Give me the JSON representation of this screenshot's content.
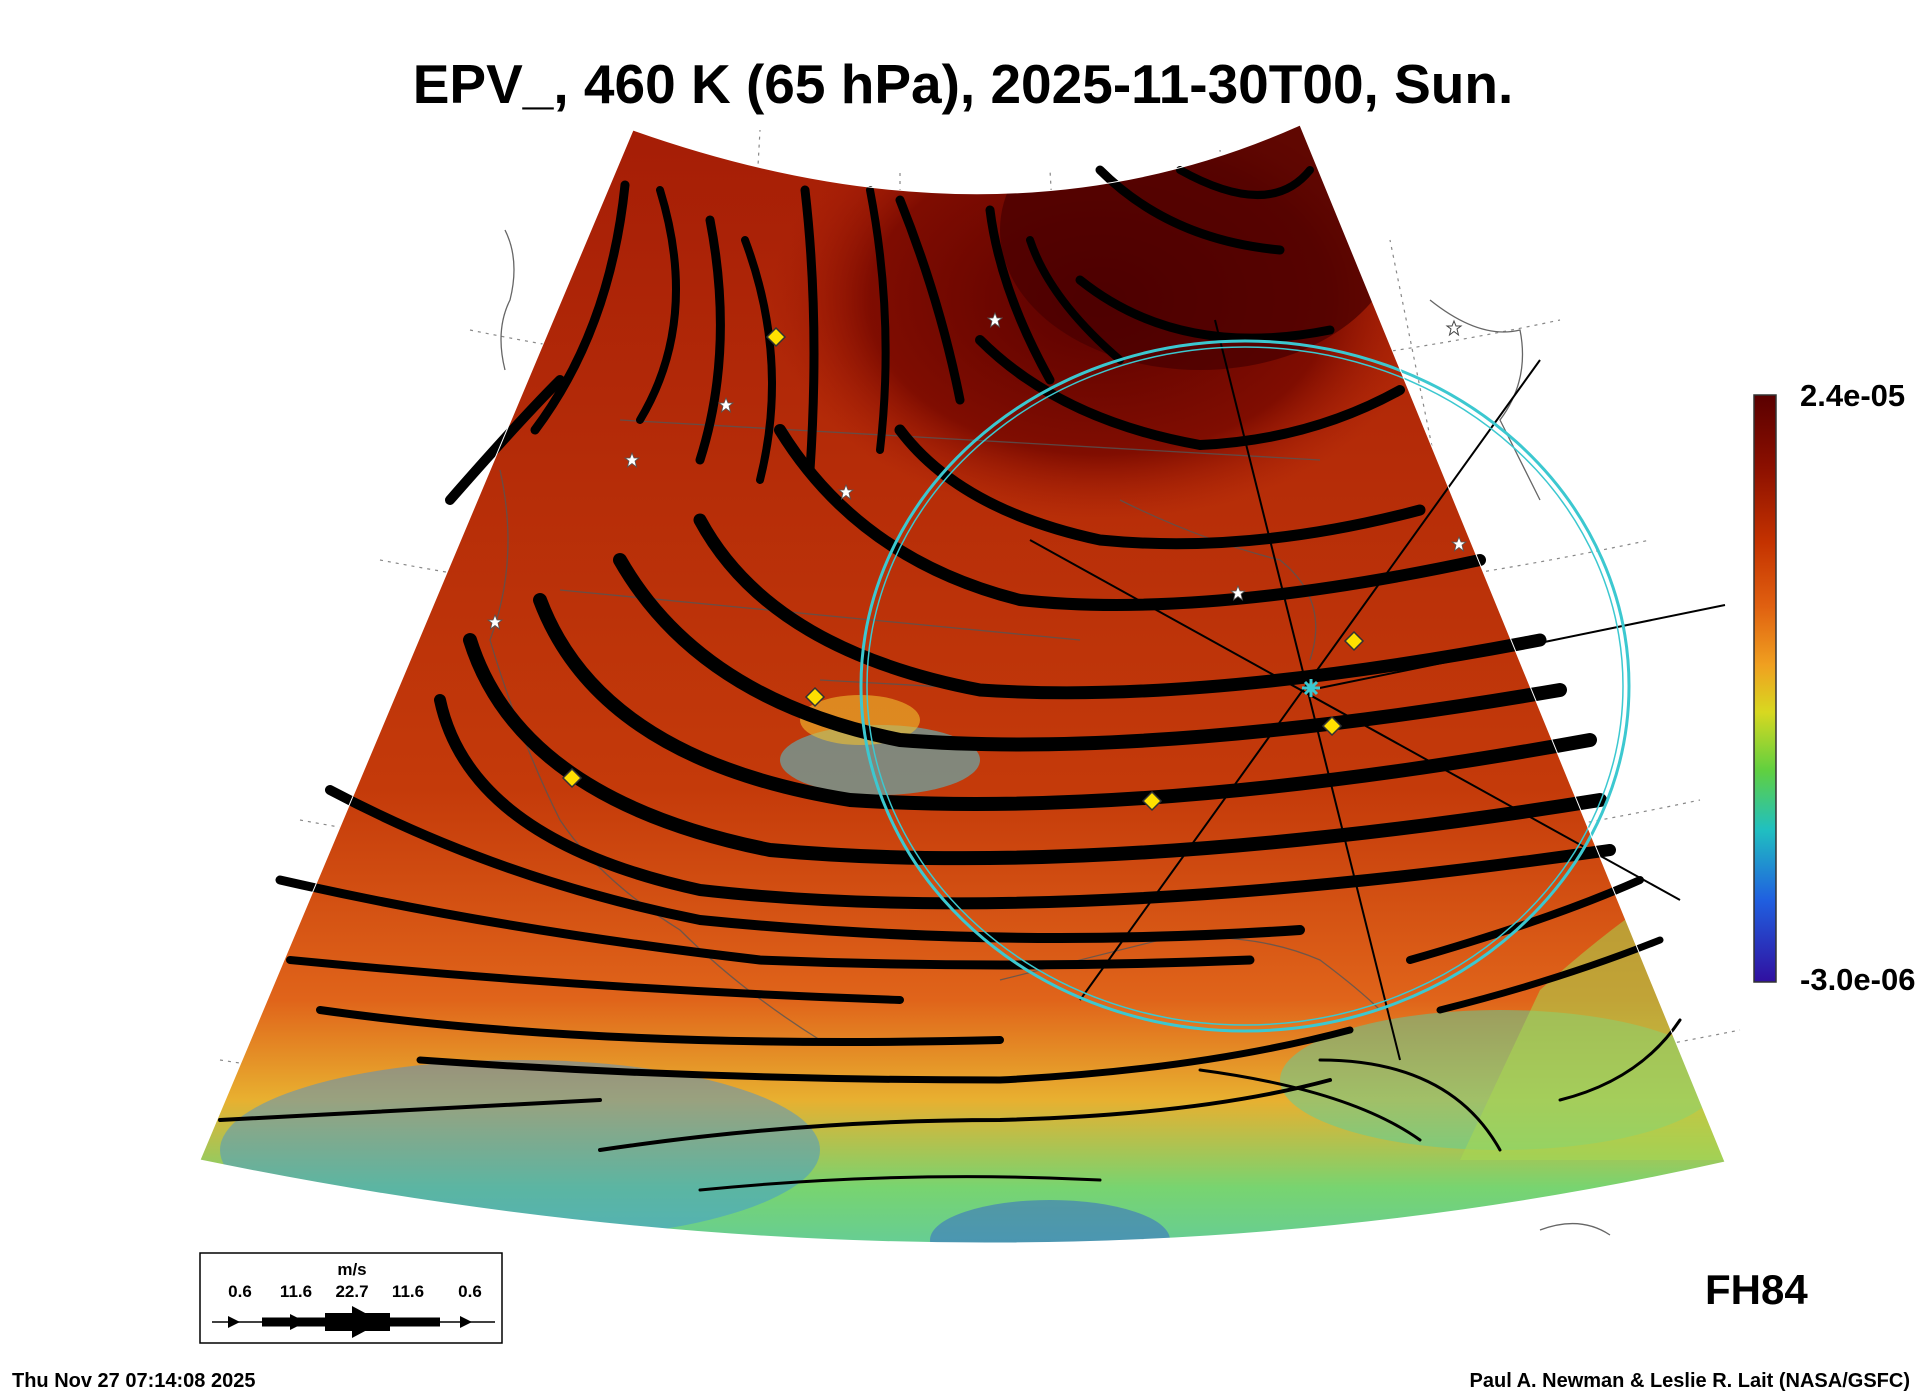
{
  "title": "EPV_, 460 K (65 hPa), 2025-11-30T00, Sun.",
  "colorbar": {
    "max_label": "2.4e-05",
    "min_label": "-3.0e-06",
    "stops": [
      "#5a0000",
      "#8a0f00",
      "#c43200",
      "#e06010",
      "#f0a020",
      "#d8d820",
      "#60d040",
      "#20c0c0",
      "#2060e0",
      "#3010a0"
    ]
  },
  "wind_legend": {
    "unit": "m/s",
    "speeds": [
      "0.6",
      "11.6",
      "22.7",
      "11.6",
      "0.6"
    ]
  },
  "forecast_hour": "FH84",
  "run_time": "Thu Nov 27 07:14:08 2025",
  "credit": "Paul A. Newman & Leslie R. Lait (NASA/GSFC)",
  "map": {
    "shading_colors": {
      "deep": "#4a0000",
      "core": "#8c1400",
      "mid": "#c43a0a",
      "warm": "#e86a14",
      "tropical": "#68d27a",
      "cyan": "#4dc8d8"
    },
    "vortex_ring_color": "#3cc8d0"
  }
}
